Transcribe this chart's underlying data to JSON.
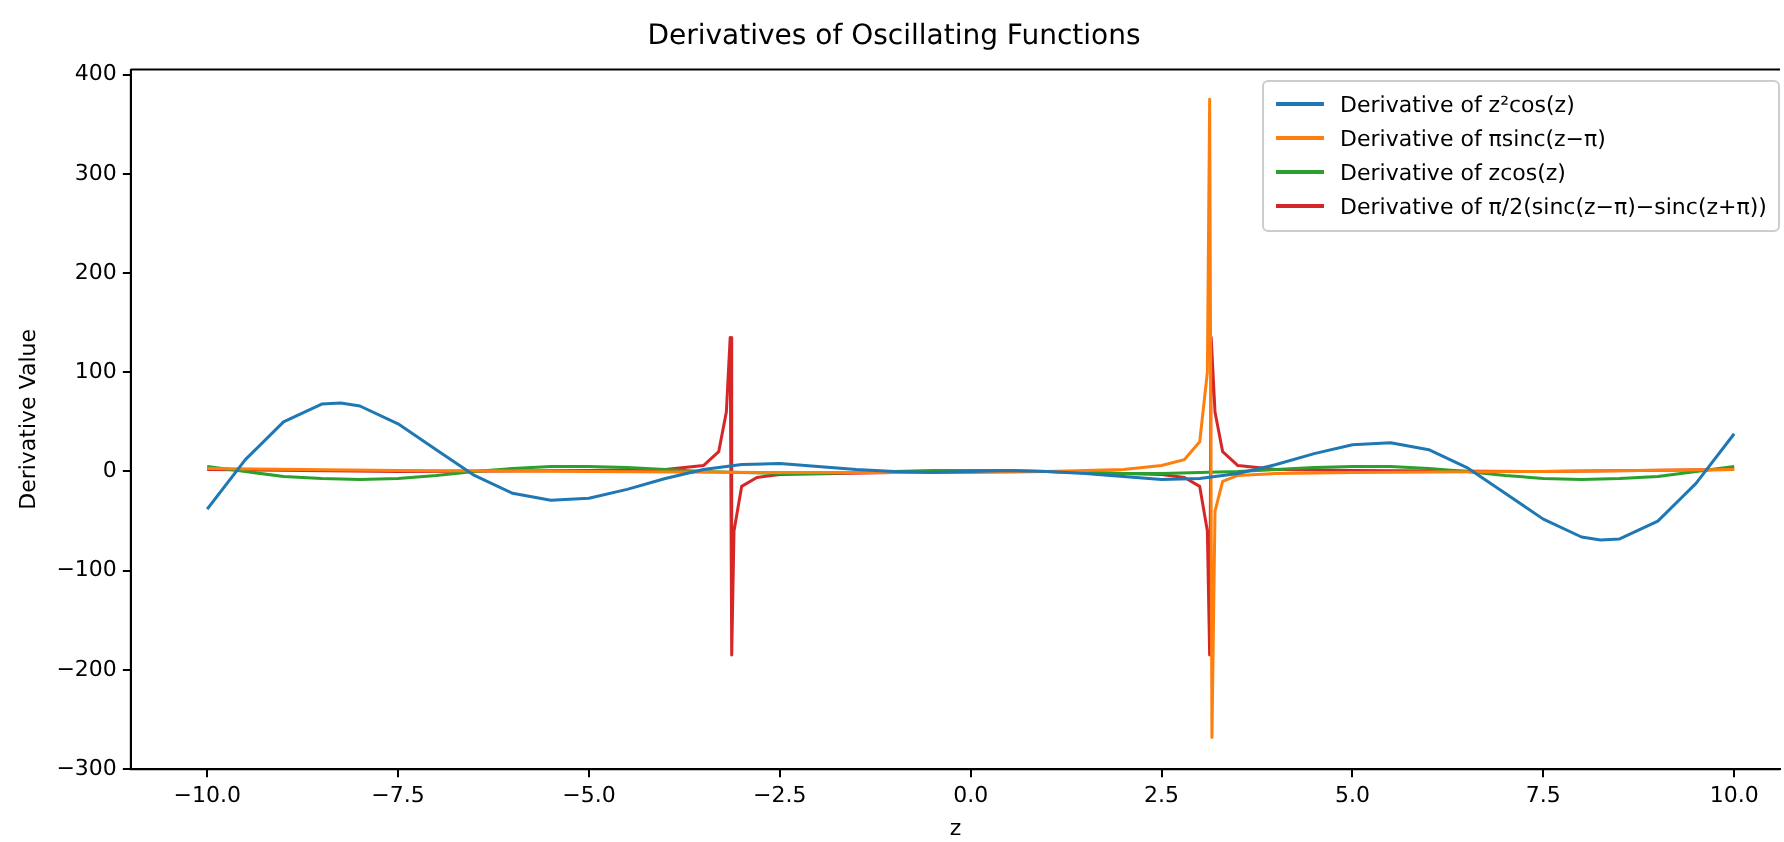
{
  "chart_data": {
    "type": "line",
    "title": "Derivatives of Oscillating Functions",
    "xlabel": "z",
    "ylabel": "Derivative Value",
    "xlim": [
      -11,
      10.6
    ],
    "ylim": [
      -300,
      405
    ],
    "xticks": [
      {
        "value": -10,
        "label": "−10.0"
      },
      {
        "value": -7.5,
        "label": "−7.5"
      },
      {
        "value": -5,
        "label": "−5.0"
      },
      {
        "value": -2.5,
        "label": "−2.5"
      },
      {
        "value": 0,
        "label": "0.0"
      },
      {
        "value": 2.5,
        "label": "2.5"
      },
      {
        "value": 5,
        "label": "5.0"
      },
      {
        "value": 7.5,
        "label": "7.5"
      },
      {
        "value": 10,
        "label": "10.0"
      }
    ],
    "yticks": [
      {
        "value": -300,
        "label": "−300"
      },
      {
        "value": -200,
        "label": "−200"
      },
      {
        "value": -100,
        "label": "−100"
      },
      0,
      100,
      200,
      300,
      400
    ],
    "grid": false,
    "legend": "top right",
    "marker": "none",
    "line_style": "solid",
    "series": [
      {
        "name": "Derivative of z²cos(z)",
        "color": "#1f77b4",
        "x": [
          -10,
          -9.5,
          -9,
          -8.5,
          -8.25,
          -8,
          -7.5,
          -7,
          -6.5,
          -6,
          -5.5,
          -5,
          -4.5,
          -4,
          -3.5,
          -3,
          -2.5,
          -2,
          -1.5,
          -1,
          -0.5,
          0,
          0.5,
          1,
          1.5,
          2,
          2.5,
          3,
          3.5,
          4,
          4.5,
          5,
          5.5,
          6,
          6.5,
          7,
          7.5,
          8,
          8.25,
          8.5,
          9,
          9.5,
          10
        ],
        "values": [
          -38,
          12,
          50,
          68,
          69,
          66,
          48,
          22,
          -4,
          -22,
          -29,
          -27,
          -18,
          -7,
          2,
          7,
          8,
          5,
          2,
          0,
          -1,
          0,
          1,
          0,
          -2,
          -5,
          -8,
          -7,
          -2,
          7,
          18,
          27,
          29,
          22,
          4,
          -22,
          -48,
          -66,
          -69,
          -68,
          -50,
          -12,
          38
        ]
      },
      {
        "name": "Derivative of πsinc(z−π)",
        "color": "#ff7f0e",
        "x": [
          -10,
          -7.5,
          -5,
          -2.5,
          0,
          1,
          2,
          2.5,
          2.8,
          3,
          3.1,
          3.13,
          3.16,
          3.2,
          3.3,
          3.5,
          4,
          5,
          7.5,
          10
        ],
        "values": [
          3,
          1,
          0,
          -1,
          -1,
          0,
          2,
          6,
          12,
          30,
          100,
          375,
          -268,
          -40,
          -10,
          -4,
          -2,
          -1,
          0,
          2
        ]
      },
      {
        "name": "Derivative of zcos(z)",
        "color": "#2ca02c",
        "x": [
          -10,
          -9.5,
          -9,
          -8.5,
          -8,
          -7.5,
          -7,
          -6.5,
          -6,
          -5.5,
          -5,
          -4.5,
          -4,
          -3.5,
          -3,
          -2.5,
          -2,
          -1.5,
          -1,
          -0.5,
          0,
          0.5,
          1,
          1.5,
          2,
          2.5,
          3,
          3.5,
          4,
          4.5,
          5,
          5.5,
          6,
          6.5,
          7,
          7.5,
          8,
          8.5,
          9,
          9.5,
          10
        ],
        "values": [
          5,
          0,
          -5,
          -7,
          -8,
          -7,
          -4,
          0,
          3,
          5,
          5,
          4,
          2,
          0,
          -1,
          -2,
          -2,
          -1,
          0,
          1,
          1,
          1,
          0,
          -1,
          -2,
          -2,
          -1,
          0,
          2,
          4,
          5,
          5,
          3,
          0,
          -4,
          -7,
          -8,
          -7,
          -5,
          0,
          5
        ]
      },
      {
        "name": "Derivative of π/2(sinc(z−π)−sinc(z+π))",
        "color": "#d62728",
        "x": [
          -10,
          -7.5,
          -5,
          -4,
          -3.5,
          -3.3,
          -3.2,
          -3.15,
          -3.13,
          -3.1,
          -3,
          -2.8,
          -2.5,
          -1,
          0,
          1,
          2,
          2.5,
          2.8,
          3,
          3.1,
          3.13,
          3.15,
          3.2,
          3.3,
          3.5,
          4,
          5,
          7.5,
          10
        ],
        "values": [
          2,
          0,
          1,
          2,
          6,
          20,
          60,
          135,
          -185,
          -60,
          -15,
          -6,
          -3,
          -1,
          0,
          0,
          -2,
          -3,
          -6,
          -15,
          -60,
          -185,
          135,
          60,
          20,
          6,
          2,
          1,
          0,
          2
        ]
      }
    ]
  }
}
